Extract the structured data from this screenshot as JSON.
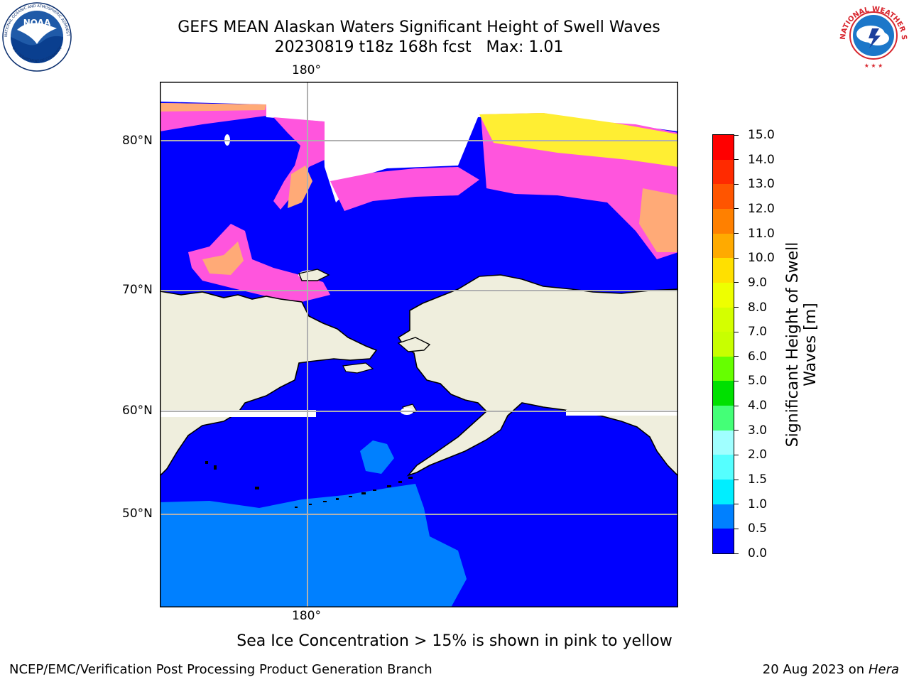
{
  "title": {
    "line1": "GEFS MEAN Alaskan Waters Significant Height of Swell Waves",
    "line2": "20230819 t18z 168h fcst   Max: 1.01"
  },
  "logos": {
    "left": {
      "name": "NOAA",
      "ring_text": "NATIONAL OCEANIC AND ATMOSPHERIC ADMINISTRATION · U.S. DEPARTMENT OF COMMERCE",
      "colors": [
        "#1f5aa8",
        "#ffffff",
        "#0b2f6e"
      ]
    },
    "right": {
      "name": "NATIONAL WEATHER SERVICE",
      "colors": [
        "#d8262e",
        "#1c77c9",
        "#ffffff"
      ]
    }
  },
  "map": {
    "projection": "polar stereographic",
    "meridian_labels": {
      "top": "180°",
      "bottom": "180°"
    },
    "parallel_labels": [
      "80°N",
      "70°N",
      "60°N",
      "50°N"
    ],
    "colors": {
      "land": "#efeedd",
      "ocean_0_0_5": "#0000ff",
      "ocean_0_5_1_0": "#0080ff",
      "sea_ice_low": "#ff55dd",
      "sea_ice_mid": "#ffaa77",
      "sea_ice_high": "#ffee33",
      "grid": "#b0b0b0",
      "coast": "#000000"
    }
  },
  "colorbar": {
    "label_line1": "Significant Height of Swell",
    "label_line2": "Waves [m]",
    "ticks": [
      "15.0",
      "14.0",
      "13.0",
      "12.0",
      "11.0",
      "10.0",
      "9.0",
      "8.0",
      "7.0",
      "6.0",
      "5.0",
      "4.0",
      "3.0",
      "2.0",
      "1.5",
      "1.0",
      "0.5",
      "0.0"
    ],
    "bins": [
      {
        "range": "14.0-15.0",
        "color": "#ff0000"
      },
      {
        "range": "13.0-14.0",
        "color": "#ff2a00"
      },
      {
        "range": "12.0-13.0",
        "color": "#ff5500"
      },
      {
        "range": "11.0-12.0",
        "color": "#ff8000"
      },
      {
        "range": "10.0-11.0",
        "color": "#ffaa00"
      },
      {
        "range": "9.0-10.0",
        "color": "#ffe000"
      },
      {
        "range": "8.0-9.0",
        "color": "#eeff00"
      },
      {
        "range": "7.0-8.0",
        "color": "#d4ff00"
      },
      {
        "range": "6.0-7.0",
        "color": "#c8ff00"
      },
      {
        "range": "5.0-6.0",
        "color": "#66ff00"
      },
      {
        "range": "4.0-5.0",
        "color": "#00e000"
      },
      {
        "range": "3.0-4.0",
        "color": "#44ff77"
      },
      {
        "range": "2.0-3.0",
        "color": "#a0ffff"
      },
      {
        "range": "1.5-2.0",
        "color": "#55ffff"
      },
      {
        "range": "1.0-1.5",
        "color": "#00eeff"
      },
      {
        "range": "0.5-1.0",
        "color": "#0080ff"
      },
      {
        "range": "0.0-0.5",
        "color": "#0000ff"
      }
    ]
  },
  "footnote": "Sea Ice Concentration > 15% is shown in pink to yellow",
  "credit": "NCEP/EMC/Verification Post Processing Product Generation Branch",
  "datestamp": {
    "date": "20 Aug 2023 on",
    "host": "Hera"
  }
}
